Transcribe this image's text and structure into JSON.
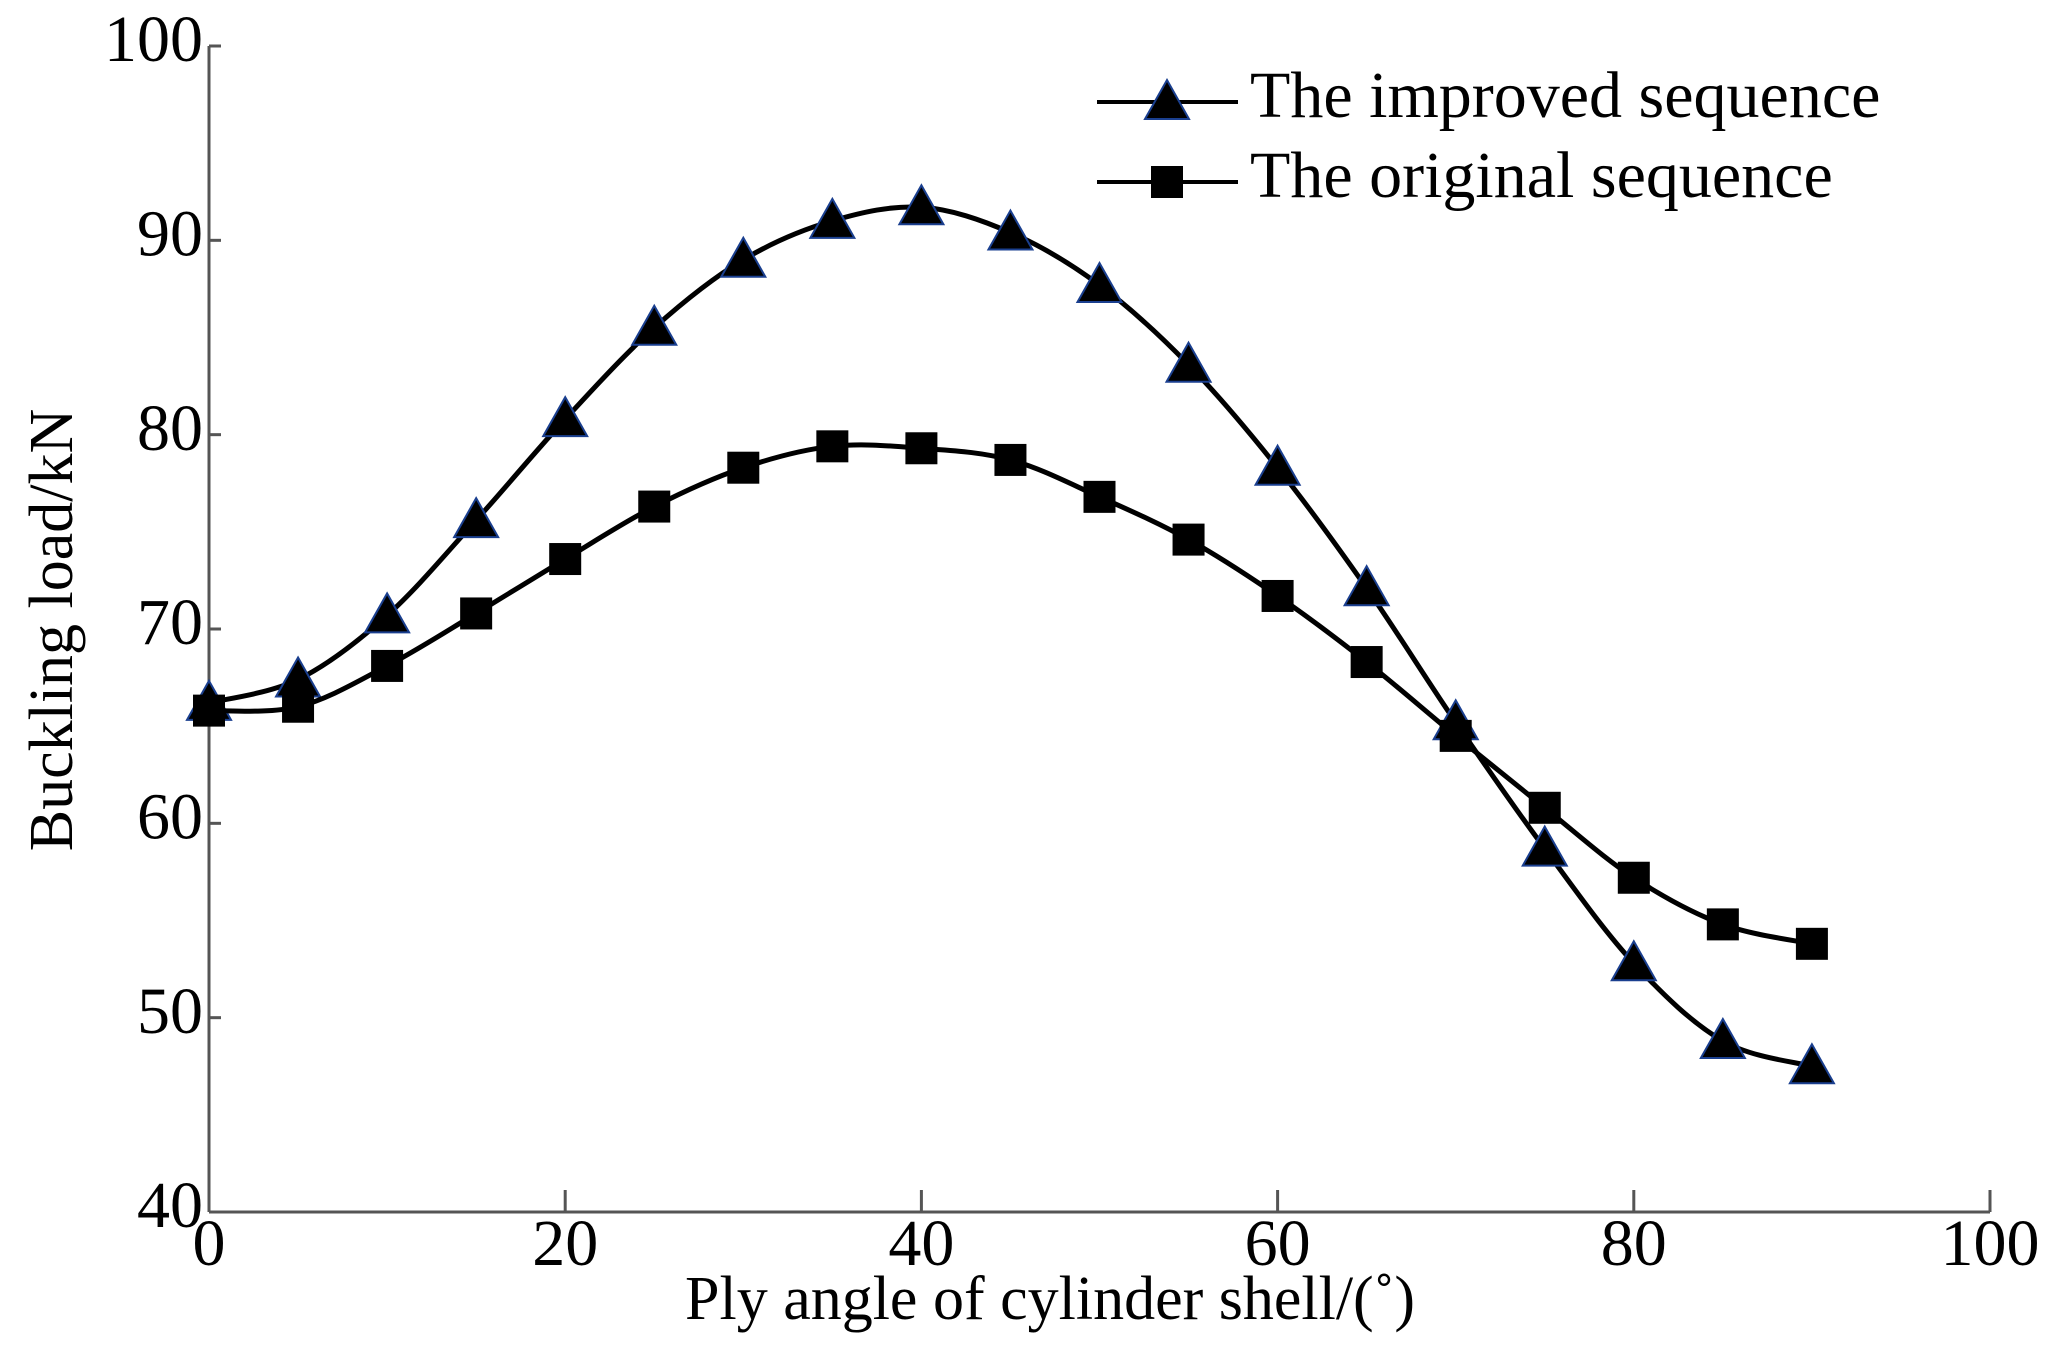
{
  "chart_data": {
    "type": "line",
    "x_label": "Ply angle of cylinder shell/(˚)",
    "y_label": "Buckling load/kN",
    "x": [
      0,
      5,
      10,
      15,
      20,
      25,
      30,
      35,
      40,
      45,
      50,
      55,
      60,
      65,
      70,
      75,
      80,
      85,
      90
    ],
    "series": [
      {
        "name": "The improved sequence",
        "color": "#000000",
        "marker": "triangle",
        "values": [
          66.2,
          67.4,
          70.7,
          75.6,
          80.8,
          85.5,
          89.0,
          91.0,
          91.7,
          90.4,
          87.7,
          83.6,
          78.3,
          72.1,
          65.2,
          58.7,
          52.8,
          48.8,
          47.5
        ]
      },
      {
        "name": "The original sequence",
        "color": "#000000",
        "marker": "square",
        "values": [
          65.8,
          66.0,
          68.1,
          70.8,
          73.6,
          76.3,
          78.3,
          79.4,
          79.3,
          78.7,
          76.8,
          74.6,
          71.7,
          68.3,
          64.5,
          60.8,
          57.2,
          54.8,
          53.8
        ]
      }
    ],
    "xlim": [
      0,
      100
    ],
    "xticks": [
      0,
      20,
      40,
      60,
      80,
      100
    ],
    "ylim": [
      40,
      100
    ],
    "yticks": [
      40,
      50,
      60,
      70,
      80,
      90,
      100
    ],
    "grid": false,
    "legend": "upper right"
  }
}
